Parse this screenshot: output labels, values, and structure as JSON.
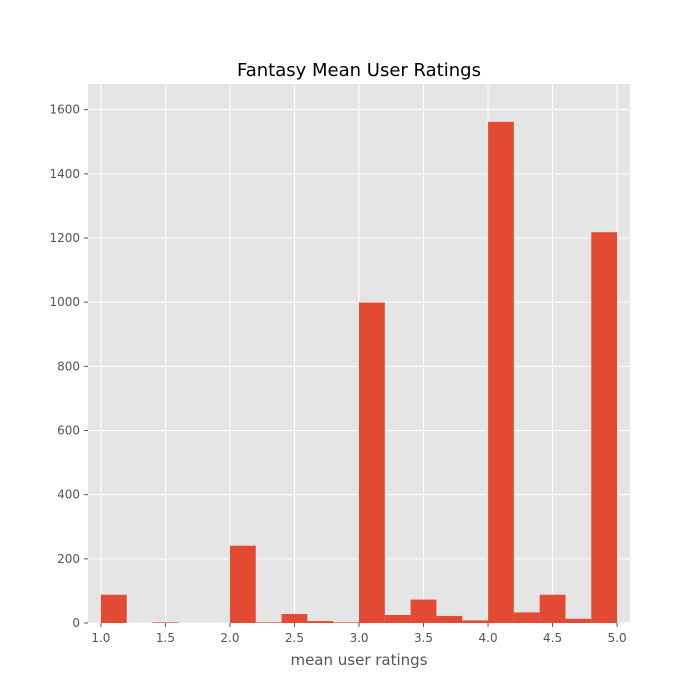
{
  "chart_data": {
    "type": "bar",
    "title": "Fantasy Mean User Ratings",
    "xlabel": "mean user ratings",
    "ylabel": "",
    "xlim": [
      0.9,
      5.1
    ],
    "ylim": [
      0,
      1680
    ],
    "grid": true,
    "x_ticks": [
      1.0,
      1.5,
      2.0,
      2.5,
      3.0,
      3.5,
      4.0,
      4.5,
      5.0
    ],
    "x_tick_labels": [
      "1.0",
      "1.5",
      "2.0",
      "2.5",
      "3.0",
      "3.5",
      "4.0",
      "4.5",
      "5.0"
    ],
    "y_ticks": [
      0,
      200,
      400,
      600,
      800,
      1000,
      1200,
      1400,
      1600
    ],
    "y_tick_labels": [
      "0",
      "200",
      "400",
      "600",
      "800",
      "1000",
      "1200",
      "1400",
      "1600"
    ],
    "bin_edges": [
      1.0,
      1.2,
      1.4,
      1.6,
      1.8,
      2.0,
      2.2,
      2.4,
      2.6,
      2.8,
      3.0,
      3.2,
      3.4,
      3.6,
      3.8,
      4.0,
      4.2,
      4.4,
      4.6,
      4.8,
      5.0
    ],
    "values": [
      88,
      0,
      2,
      0,
      0,
      241,
      2,
      28,
      6,
      2,
      999,
      25,
      73,
      22,
      8,
      1562,
      33,
      88,
      13,
      1218
    ],
    "colors": {
      "bar": "#E24A33",
      "plot_bg": "#E5E5E5",
      "grid": "#FFFFFF",
      "text": "#555555"
    }
  }
}
